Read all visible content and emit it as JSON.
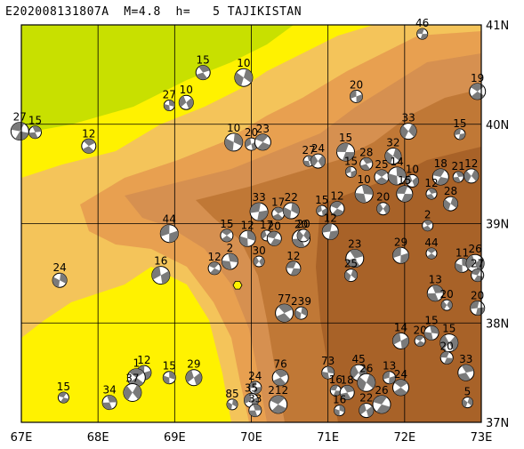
{
  "header": {
    "title": "E202008131807A  M=4.8  h=   5 TAJIKISTAN"
  },
  "map": {
    "lon_range": [
      67,
      73
    ],
    "lat_range": [
      37,
      41
    ],
    "lon_ticks": [
      "67E",
      "68E",
      "69E",
      "70E",
      "71E",
      "72E",
      "73E"
    ],
    "lat_ticks": [
      "41N",
      "40N",
      "39N",
      "38N",
      "37N"
    ],
    "colors": {
      "frame": "#000000",
      "lowland": "#c8e000",
      "plain": "#fff200",
      "hill1": "#f4c45a",
      "hill2": "#e8a050",
      "mount1": "#d69050",
      "mount2": "#c07836",
      "mount3": "#a86228",
      "grid": "#000000",
      "event_marker": "#fff200"
    },
    "event": {
      "lon": 69.82,
      "lat": 38.38
    },
    "mechanisms": [
      {
        "lon": 72.23,
        "lat": 40.91,
        "label": "46"
      },
      {
        "lon": 69.37,
        "lat": 40.52,
        "label": "15"
      },
      {
        "lon": 69.9,
        "lat": 40.47,
        "label": "10"
      },
      {
        "lon": 71.37,
        "lat": 40.28,
        "label": "20"
      },
      {
        "lon": 72.95,
        "lat": 40.33,
        "label": "19"
      },
      {
        "lon": 68.93,
        "lat": 40.19,
        "label": "27"
      },
      {
        "lon": 69.15,
        "lat": 40.22,
        "label": "10"
      },
      {
        "lon": 66.98,
        "lat": 39.93,
        "label": "27"
      },
      {
        "lon": 67.18,
        "lat": 39.92,
        "label": "15"
      },
      {
        "lon": 72.05,
        "lat": 39.93,
        "label": "33"
      },
      {
        "lon": 72.72,
        "lat": 39.9,
        "label": "15"
      },
      {
        "lon": 67.88,
        "lat": 39.78,
        "label": "12"
      },
      {
        "lon": 69.77,
        "lat": 39.82,
        "label": "10"
      },
      {
        "lon": 70.0,
        "lat": 39.8,
        "label": "20"
      },
      {
        "lon": 70.15,
        "lat": 39.82,
        "label": "23"
      },
      {
        "lon": 70.75,
        "lat": 39.63,
        "label": "27"
      },
      {
        "lon": 70.87,
        "lat": 39.63,
        "label": "24"
      },
      {
        "lon": 71.23,
        "lat": 39.72,
        "label": "15"
      },
      {
        "lon": 71.5,
        "lat": 39.6,
        "label": "28"
      },
      {
        "lon": 71.85,
        "lat": 39.68,
        "label": "32"
      },
      {
        "lon": 71.3,
        "lat": 39.52,
        "label": "15"
      },
      {
        "lon": 71.7,
        "lat": 39.47,
        "label": "25"
      },
      {
        "lon": 71.9,
        "lat": 39.48,
        "label": "14"
      },
      {
        "lon": 72.1,
        "lat": 39.43,
        "label": "10"
      },
      {
        "lon": 72.47,
        "lat": 39.47,
        "label": "18"
      },
      {
        "lon": 72.7,
        "lat": 39.47,
        "label": "21"
      },
      {
        "lon": 72.87,
        "lat": 39.48,
        "label": "12"
      },
      {
        "lon": 70.1,
        "lat": 39.12,
        "label": "33"
      },
      {
        "lon": 70.35,
        "lat": 39.1,
        "label": "17"
      },
      {
        "lon": 70.52,
        "lat": 39.13,
        "label": "22"
      },
      {
        "lon": 70.92,
        "lat": 39.13,
        "label": "15"
      },
      {
        "lon": 71.12,
        "lat": 39.15,
        "label": "12"
      },
      {
        "lon": 71.47,
        "lat": 39.3,
        "label": "10"
      },
      {
        "lon": 71.72,
        "lat": 39.15,
        "label": "20"
      },
      {
        "lon": 72.0,
        "lat": 39.3,
        "label": "15"
      },
      {
        "lon": 72.35,
        "lat": 39.3,
        "label": "12"
      },
      {
        "lon": 72.6,
        "lat": 39.2,
        "label": "28"
      },
      {
        "lon": 68.93,
        "lat": 38.9,
        "label": "44"
      },
      {
        "lon": 69.68,
        "lat": 38.88,
        "label": "15"
      },
      {
        "lon": 69.95,
        "lat": 38.85,
        "label": "12"
      },
      {
        "lon": 70.2,
        "lat": 38.88,
        "label": "17"
      },
      {
        "lon": 70.3,
        "lat": 38.85,
        "label": "20"
      },
      {
        "lon": 70.65,
        "lat": 38.85,
        "label": "20"
      },
      {
        "lon": 70.68,
        "lat": 38.88,
        "label": "20"
      },
      {
        "lon": 71.03,
        "lat": 38.92,
        "label": "12"
      },
      {
        "lon": 72.3,
        "lat": 38.98,
        "label": "2"
      },
      {
        "lon": 67.5,
        "lat": 38.43,
        "label": "24"
      },
      {
        "lon": 68.82,
        "lat": 38.48,
        "label": "16"
      },
      {
        "lon": 69.52,
        "lat": 38.55,
        "label": "12"
      },
      {
        "lon": 69.72,
        "lat": 38.62,
        "label": "2"
      },
      {
        "lon": 70.1,
        "lat": 38.62,
        "label": "30"
      },
      {
        "lon": 70.55,
        "lat": 38.55,
        "label": "12"
      },
      {
        "lon": 71.35,
        "lat": 38.65,
        "label": "23"
      },
      {
        "lon": 71.3,
        "lat": 38.48,
        "label": "25"
      },
      {
        "lon": 71.95,
        "lat": 38.68,
        "label": "29"
      },
      {
        "lon": 72.35,
        "lat": 38.7,
        "label": "44"
      },
      {
        "lon": 72.75,
        "lat": 38.58,
        "label": "11"
      },
      {
        "lon": 72.92,
        "lat": 38.6,
        "label": "26"
      },
      {
        "lon": 72.95,
        "lat": 38.48,
        "label": "27"
      },
      {
        "lon": 72.4,
        "lat": 38.3,
        "label": "13"
      },
      {
        "lon": 72.55,
        "lat": 38.18,
        "label": "20"
      },
      {
        "lon": 72.95,
        "lat": 38.15,
        "label": "20"
      },
      {
        "lon": 70.43,
        "lat": 38.1,
        "label": "77"
      },
      {
        "lon": 70.65,
        "lat": 38.1,
        "label": "239"
      },
      {
        "lon": 71.95,
        "lat": 37.82,
        "label": "14"
      },
      {
        "lon": 72.2,
        "lat": 37.82,
        "label": "20"
      },
      {
        "lon": 72.35,
        "lat": 37.9,
        "label": "15"
      },
      {
        "lon": 72.58,
        "lat": 37.8,
        "label": "15"
      },
      {
        "lon": 72.55,
        "lat": 37.65,
        "label": "20"
      },
      {
        "lon": 72.8,
        "lat": 37.5,
        "label": "33"
      },
      {
        "lon": 72.82,
        "lat": 37.2,
        "label": "5"
      },
      {
        "lon": 68.6,
        "lat": 37.5,
        "label": "12"
      },
      {
        "lon": 68.5,
        "lat": 37.45,
        "label": "1"
      },
      {
        "lon": 68.93,
        "lat": 37.45,
        "label": "15"
      },
      {
        "lon": 69.25,
        "lat": 37.45,
        "label": "29"
      },
      {
        "lon": 67.55,
        "lat": 37.25,
        "label": "15"
      },
      {
        "lon": 68.15,
        "lat": 37.2,
        "label": "34"
      },
      {
        "lon": 68.45,
        "lat": 37.3,
        "label": "37"
      },
      {
        "lon": 70.05,
        "lat": 37.35,
        "label": "24"
      },
      {
        "lon": 70.38,
        "lat": 37.45,
        "label": "76"
      },
      {
        "lon": 69.75,
        "lat": 37.18,
        "label": "85"
      },
      {
        "lon": 70.0,
        "lat": 37.22,
        "label": "35"
      },
      {
        "lon": 70.35,
        "lat": 37.18,
        "label": "212"
      },
      {
        "lon": 71.0,
        "lat": 37.5,
        "label": "73"
      },
      {
        "lon": 71.4,
        "lat": 37.5,
        "label": "45"
      },
      {
        "lon": 71.1,
        "lat": 37.32,
        "label": "16"
      },
      {
        "lon": 71.25,
        "lat": 37.3,
        "label": "18"
      },
      {
        "lon": 71.5,
        "lat": 37.4,
        "label": "26"
      },
      {
        "lon": 71.8,
        "lat": 37.45,
        "label": "13"
      },
      {
        "lon": 71.95,
        "lat": 37.35,
        "label": "24"
      },
      {
        "lon": 71.15,
        "lat": 37.12,
        "label": "16"
      },
      {
        "lon": 71.5,
        "lat": 37.12,
        "label": "22"
      },
      {
        "lon": 71.7,
        "lat": 37.18,
        "label": "26"
      },
      {
        "lon": 70.05,
        "lat": 37.12,
        "label": "33"
      }
    ]
  }
}
